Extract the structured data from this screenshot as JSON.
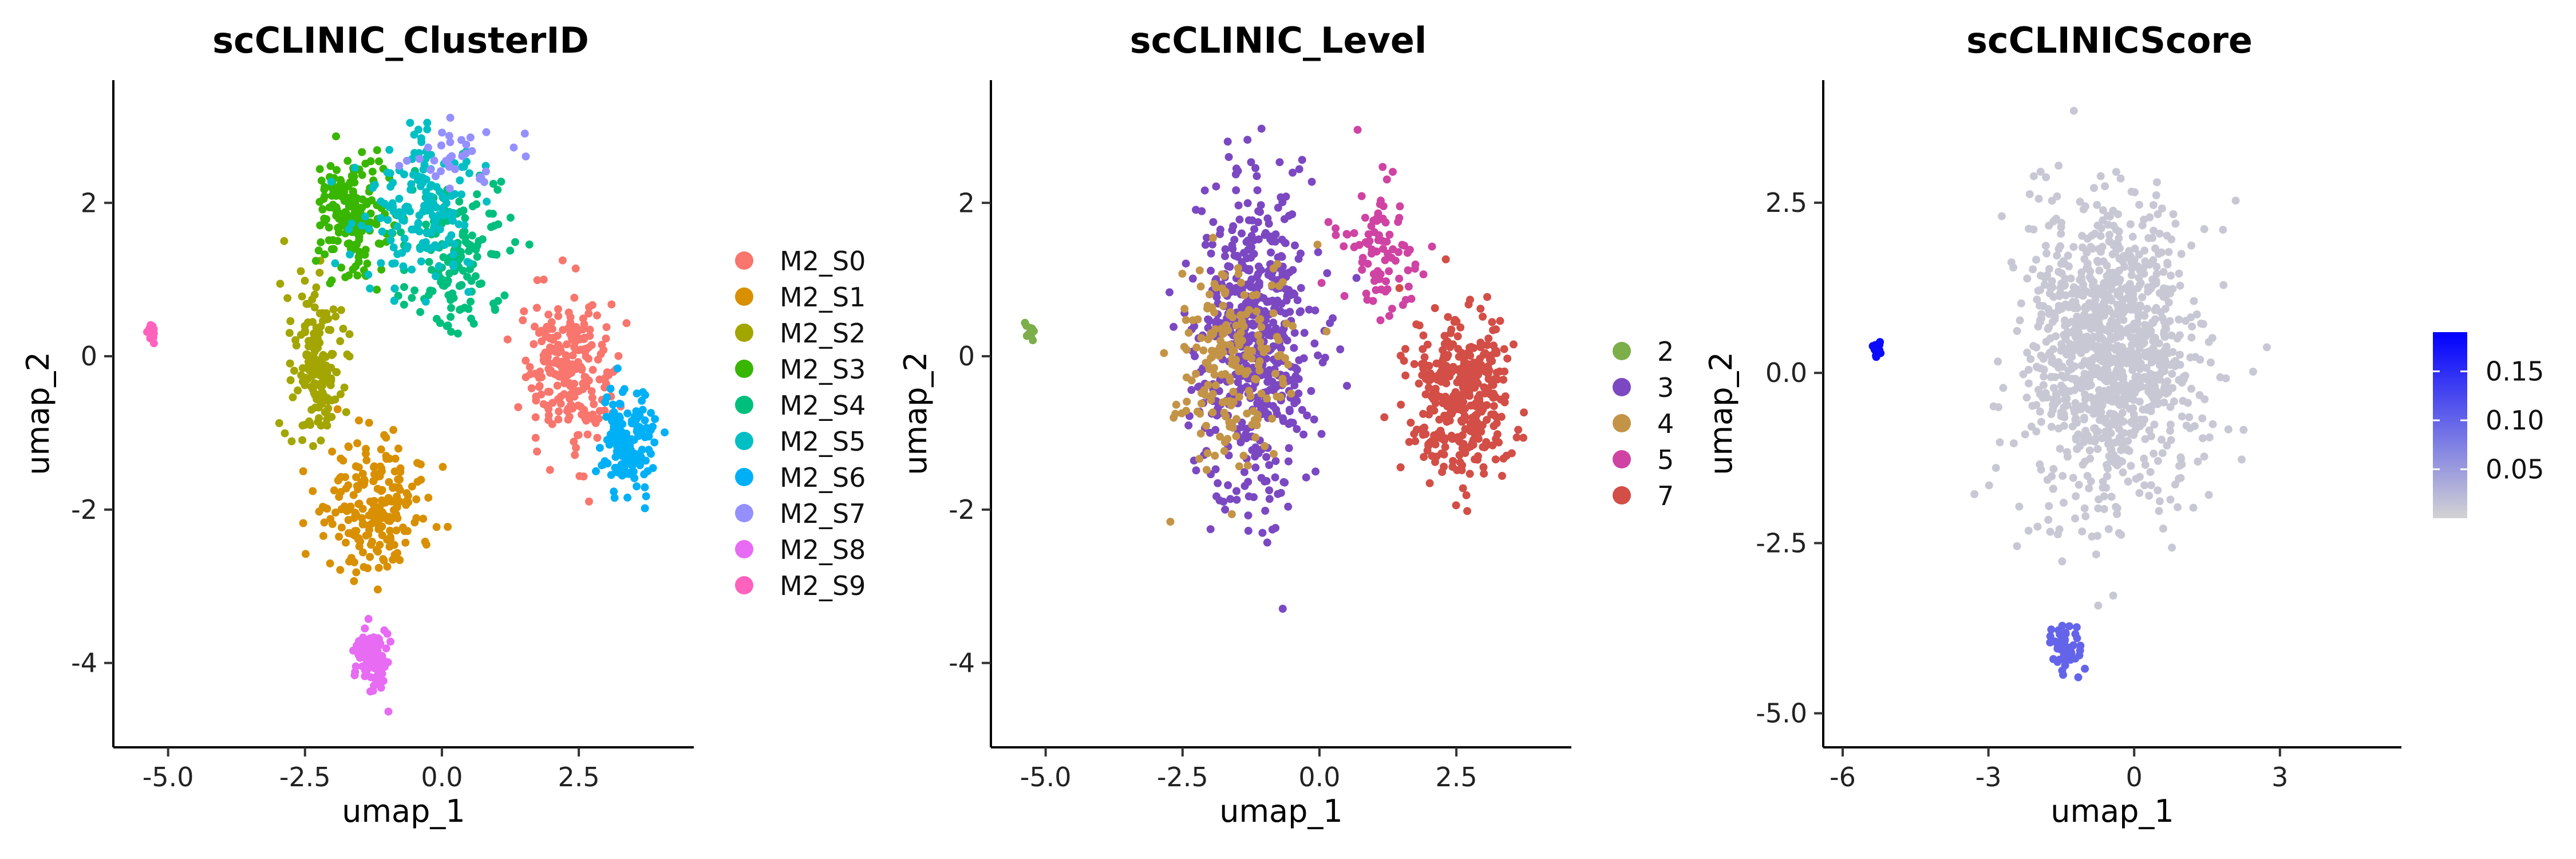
{
  "chart_data": [
    {
      "type": "scatter",
      "title": "scCLINIC_ClusterID",
      "xlabel": "umap_1",
      "ylabel": "umap_2",
      "xlim": [
        -6.0,
        4.6
      ],
      "ylim": [
        -5.1,
        3.6
      ],
      "x_ticks": [
        -5.0,
        -2.5,
        0.0,
        2.5
      ],
      "x_tick_labels": [
        "-5.0",
        "-2.5",
        "0.0",
        "2.5"
      ],
      "y_ticks": [
        -4,
        -2,
        0,
        2
      ],
      "y_tick_labels": [
        "-4",
        "-2",
        "0",
        "2"
      ],
      "grid": false,
      "legend_position": "right",
      "legend": [
        {
          "label": "M2_S0",
          "color": "#F8766D"
        },
        {
          "label": "M2_S1",
          "color": "#D89000"
        },
        {
          "label": "M2_S2",
          "color": "#A3A500"
        },
        {
          "label": "M2_S3",
          "color": "#39B600"
        },
        {
          "label": "M2_S4",
          "color": "#00BF7D"
        },
        {
          "label": "M2_S5",
          "color": "#00BFC4"
        },
        {
          "label": "M2_S6",
          "color": "#00B0F6"
        },
        {
          "label": "M2_S7",
          "color": "#9590FF"
        },
        {
          "label": "M2_S8",
          "color": "#E76BF3"
        },
        {
          "label": "M2_S9",
          "color": "#FF62BC"
        }
      ],
      "series": [
        {
          "name": "M2_S0",
          "color": "#F8766D",
          "center": [
            2.3,
            -0.2
          ],
          "spread": [
            0.75,
            0.85
          ],
          "count": 230
        },
        {
          "name": "M2_S1",
          "color": "#D89000",
          "center": [
            -1.2,
            -2.0
          ],
          "spread": [
            0.8,
            0.75
          ],
          "count": 220
        },
        {
          "name": "M2_S2",
          "color": "#A3A500",
          "center": [
            -2.3,
            -0.1
          ],
          "spread": [
            0.45,
            0.9
          ],
          "count": 170
        },
        {
          "name": "M2_S3",
          "color": "#39B600",
          "center": [
            -1.6,
            1.9
          ],
          "spread": [
            0.65,
            0.75
          ],
          "count": 190
        },
        {
          "name": "M2_S4",
          "color": "#00BF7D",
          "center": [
            0.2,
            1.3
          ],
          "spread": [
            0.85,
            0.95
          ],
          "count": 160
        },
        {
          "name": "M2_S5",
          "color": "#00BFC4",
          "center": [
            -0.4,
            1.9
          ],
          "spread": [
            0.85,
            0.8
          ],
          "count": 160
        },
        {
          "name": "M2_S6",
          "color": "#00B0F6",
          "center": [
            3.4,
            -1.1
          ],
          "spread": [
            0.45,
            0.65
          ],
          "count": 140
        },
        {
          "name": "M2_S7",
          "color": "#9590FF",
          "center": [
            0.2,
            2.6
          ],
          "spread": [
            0.8,
            0.45
          ],
          "count": 35
        },
        {
          "name": "M2_S8",
          "color": "#E76BF3",
          "center": [
            -1.3,
            -3.9
          ],
          "spread": [
            0.3,
            0.4
          ],
          "count": 80
        },
        {
          "name": "M2_S9",
          "color": "#FF62BC",
          "center": [
            -5.3,
            0.3
          ],
          "spread": [
            0.07,
            0.13
          ],
          "count": 16
        }
      ]
    },
    {
      "type": "scatter",
      "title": "scCLINIC_Level",
      "xlabel": "umap_1",
      "ylabel": "umap_2",
      "xlim": [
        -6.0,
        4.6
      ],
      "ylim": [
        -5.1,
        3.6
      ],
      "x_ticks": [
        -5.0,
        -2.5,
        0.0,
        2.5
      ],
      "x_tick_labels": [
        "-5.0",
        "-2.5",
        "0.0",
        "2.5"
      ],
      "y_ticks": [
        -4,
        -2,
        0,
        2
      ],
      "y_tick_labels": [
        "-4",
        "-2",
        "0",
        "2"
      ],
      "grid": false,
      "legend_position": "right",
      "legend": [
        {
          "label": "2",
          "color": "#7CAE4A"
        },
        {
          "label": "3",
          "color": "#7B48C2"
        },
        {
          "label": "4",
          "color": "#C39447"
        },
        {
          "label": "5",
          "color": "#CF43A3"
        },
        {
          "label": "7",
          "color": "#D24E46"
        }
      ],
      "series": [
        {
          "name": "2",
          "color": "#7CAE4A",
          "center": [
            -5.3,
            0.3
          ],
          "spread": [
            0.07,
            0.13
          ],
          "count": 16
        },
        {
          "name": "3",
          "color": "#7B48C2",
          "center": [
            -1.2,
            0.3
          ],
          "spread": [
            1.0,
            1.9
          ],
          "count": 560
        },
        {
          "name": "4",
          "color": "#C39447",
          "center": [
            -1.6,
            0.0
          ],
          "spread": [
            0.9,
            1.3
          ],
          "count": 200
        },
        {
          "name": "5",
          "color": "#CF43A3",
          "center": [
            1.1,
            1.5
          ],
          "spread": [
            0.7,
            0.8
          ],
          "count": 90
        },
        {
          "name": "7",
          "color": "#D24E46",
          "center": [
            2.6,
            -0.5
          ],
          "spread": [
            0.85,
            0.95
          ],
          "count": 370
        }
      ]
    },
    {
      "type": "scatter",
      "title": "scCLINICScore",
      "xlabel": "umap_1",
      "ylabel": "umap_2",
      "xlim": [
        -6.4,
        5.5
      ],
      "ylim": [
        -5.5,
        4.3
      ],
      "x_ticks": [
        -6,
        -3,
        0,
        3
      ],
      "x_tick_labels": [
        "-6",
        "-3",
        "0",
        "3"
      ],
      "y_ticks": [
        -5.0,
        -2.5,
        0.0,
        2.5
      ],
      "y_tick_labels": [
        "-5.0",
        "-2.5",
        "0.0",
        "2.5"
      ],
      "grid": false,
      "legend_position": "right",
      "colorbar": {
        "range": [
          0.0,
          0.19
        ],
        "low_color": "#D3D3D3",
        "high_color": "#0000FF",
        "ticks": [
          0.05,
          0.1,
          0.15
        ],
        "tick_labels": [
          "0.05",
          "0.10",
          "0.15"
        ]
      },
      "series": [
        {
          "name": "",
          "score": 0.18,
          "center": [
            -5.3,
            0.35
          ],
          "spread": [
            0.08,
            0.14
          ],
          "count": 16
        },
        {
          "name": "",
          "score": 0.1,
          "center": [
            -1.4,
            -4.1
          ],
          "spread": [
            0.3,
            0.35
          ],
          "count": 60
        },
        {
          "name": "",
          "score": 0.01,
          "center": [
            -0.5,
            0.3
          ],
          "spread": [
            1.6,
            2.0
          ],
          "count": 1100
        }
      ]
    }
  ]
}
